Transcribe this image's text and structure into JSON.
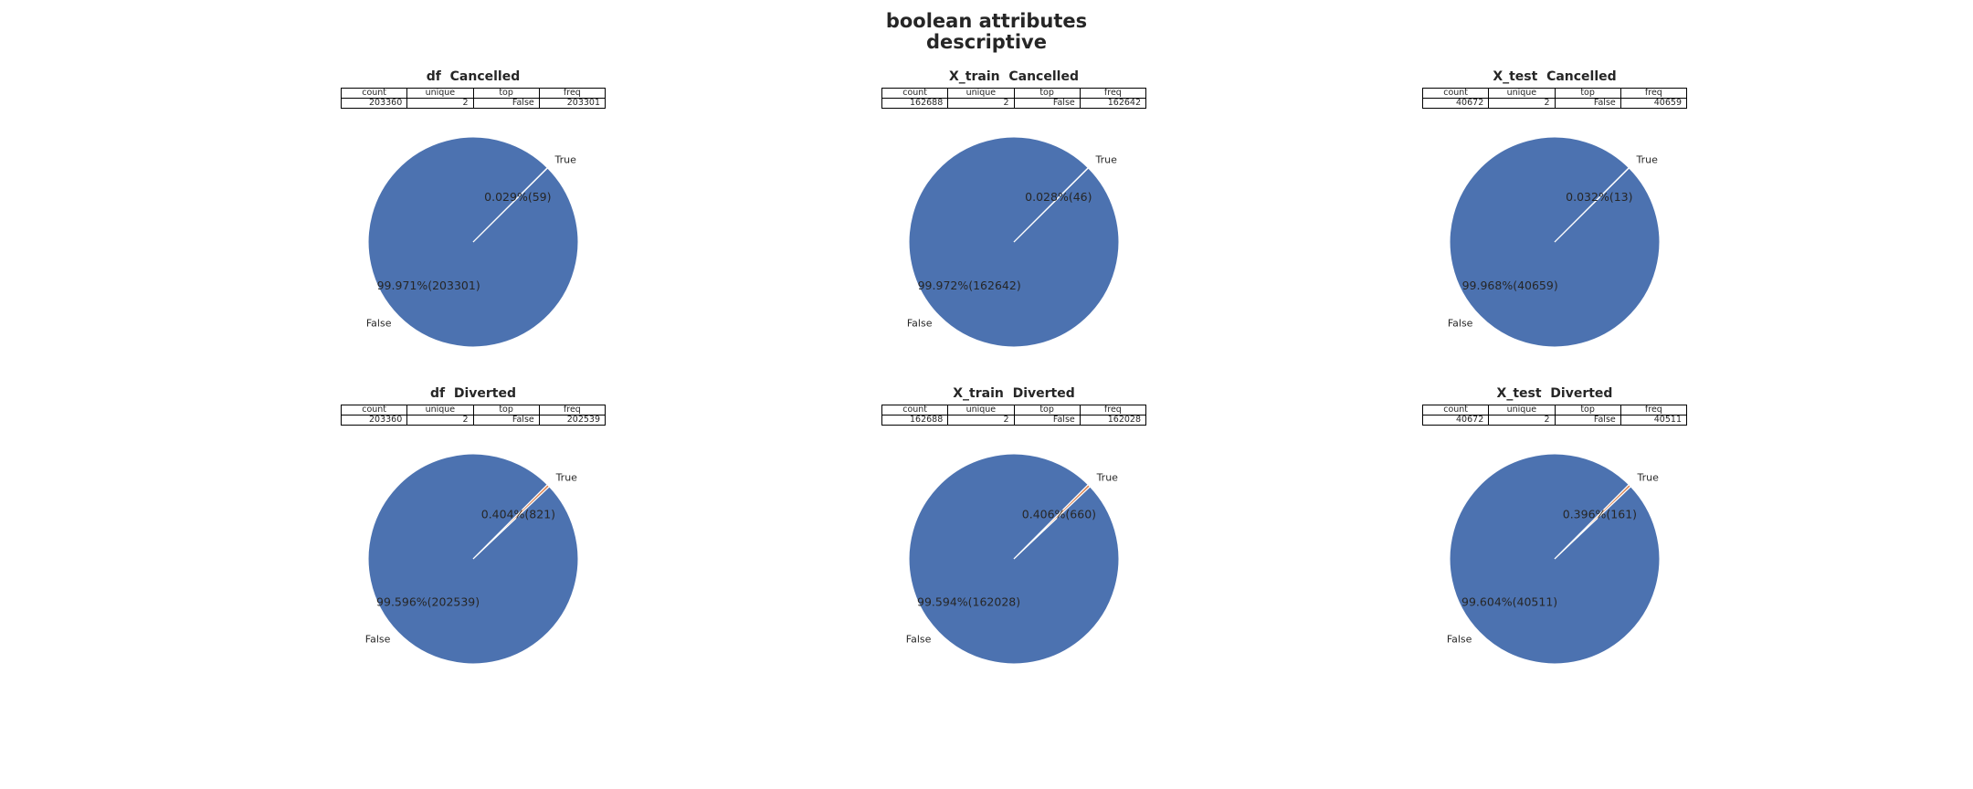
{
  "figure": {
    "title_line1": "boolean attributes",
    "title_line2": "descriptive"
  },
  "colors": {
    "false_slice": "#4c72b0",
    "true_slice": "#dd8452",
    "edge": "#ffffff"
  },
  "table_headers": [
    "count",
    "unique",
    "top",
    "freq"
  ],
  "chart_data": [
    {
      "type": "pie",
      "title": "df  Cancelled",
      "table": [
        "203360",
        "2",
        "False",
        "203301"
      ],
      "slices": [
        {
          "label": "False",
          "value": 203301,
          "pct_label": "99.971%(203301)"
        },
        {
          "label": "True",
          "value": 59,
          "pct_label": "0.029%(59)"
        }
      ]
    },
    {
      "type": "pie",
      "title": "X_train  Cancelled",
      "table": [
        "162688",
        "2",
        "False",
        "162642"
      ],
      "slices": [
        {
          "label": "False",
          "value": 162642,
          "pct_label": "99.972%(162642)"
        },
        {
          "label": "True",
          "value": 46,
          "pct_label": "0.028%(46)"
        }
      ]
    },
    {
      "type": "pie",
      "title": "X_test  Cancelled",
      "table": [
        "40672",
        "2",
        "False",
        "40659"
      ],
      "slices": [
        {
          "label": "False",
          "value": 40659,
          "pct_label": "99.968%(40659)"
        },
        {
          "label": "True",
          "value": 13,
          "pct_label": "0.032%(13)"
        }
      ]
    },
    {
      "type": "pie",
      "title": "df  Diverted",
      "table": [
        "203360",
        "2",
        "False",
        "202539"
      ],
      "slices": [
        {
          "label": "False",
          "value": 202539,
          "pct_label": "99.596%(202539)"
        },
        {
          "label": "True",
          "value": 821,
          "pct_label": "0.404%(821)"
        }
      ]
    },
    {
      "type": "pie",
      "title": "X_train  Diverted",
      "table": [
        "162688",
        "2",
        "False",
        "162028"
      ],
      "slices": [
        {
          "label": "False",
          "value": 162028,
          "pct_label": "99.594%(162028)"
        },
        {
          "label": "True",
          "value": 660,
          "pct_label": "0.406%(660)"
        }
      ]
    },
    {
      "type": "pie",
      "title": "X_test  Diverted",
      "table": [
        "40672",
        "2",
        "False",
        "40511"
      ],
      "slices": [
        {
          "label": "False",
          "value": 40511,
          "pct_label": "99.604%(40511)"
        },
        {
          "label": "True",
          "value": 161,
          "pct_label": "0.396%(161)"
        }
      ]
    }
  ]
}
